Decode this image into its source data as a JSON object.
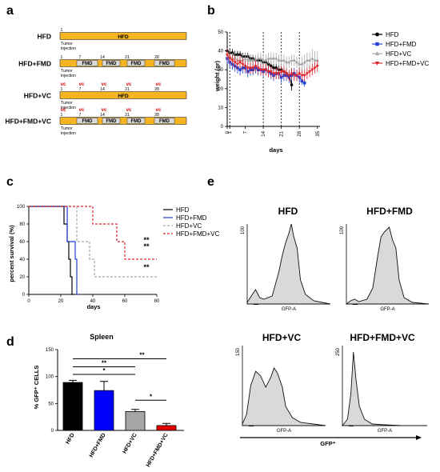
{
  "panels": {
    "a": "a",
    "b": "b",
    "c": "c",
    "d": "d",
    "e": "e"
  },
  "panel_a": {
    "rows": [
      {
        "label": "HFD",
        "bar_text": "HFD",
        "days": [
          "1"
        ],
        "tumor": [
          "Tumor",
          "injection"
        ],
        "fmd": [],
        "vc": []
      },
      {
        "label": "HFD+FMD",
        "bar_text": "",
        "days": [
          "1",
          "7",
          "14",
          "21",
          "28"
        ],
        "tumor": [
          "Tumor",
          "injection"
        ],
        "fmd": [
          "FMD",
          "FMD",
          "FMD",
          "FMD"
        ],
        "vc": []
      },
      {
        "label": "HFD+VC",
        "bar_text": "HFD",
        "days": [
          "1",
          "7",
          "14",
          "21",
          "28"
        ],
        "tumor": [
          "Tumor",
          "injection"
        ],
        "fmd": [],
        "vc": [
          "vc",
          "vc",
          "vc",
          "vc",
          "vc"
        ]
      },
      {
        "label": "HFD+FMD+VC",
        "bar_text": "",
        "days": [
          "1",
          "7",
          "14",
          "21",
          "28"
        ],
        "tumor": [
          "Tumor",
          "injection"
        ],
        "fmd": [
          "FMD",
          "FMD",
          "FMD",
          "FMD"
        ],
        "vc": [
          "vc",
          "vc",
          "vc",
          "vc",
          "vc"
        ]
      }
    ],
    "colors": {
      "bar": "#f5b521",
      "fmd_box": "#d9d9d9",
      "vc": "#d40000"
    }
  },
  "chart_data": [
    {
      "panel": "b",
      "type": "line",
      "ylabel": "weight (gr)",
      "xlabel": "days",
      "ylim": [
        0,
        50
      ],
      "yticks": [
        "0",
        "10",
        "20",
        "30",
        "40",
        "50"
      ],
      "xticks": [
        "0",
        "1",
        "7",
        "14",
        "21",
        "28",
        "35"
      ],
      "xlim": [
        0,
        36
      ],
      "vlines": [
        1,
        14,
        21,
        28
      ],
      "series": [
        {
          "name": "HFD",
          "color": "#000000",
          "marker": "circle",
          "x": [
            0,
            1,
            2,
            3,
            4,
            5,
            6,
            7,
            8,
            9,
            10,
            11,
            12,
            13,
            14,
            15,
            16,
            17,
            18,
            19,
            20,
            21,
            22,
            23,
            24,
            25
          ],
          "y": [
            40,
            39,
            39,
            38,
            38,
            38,
            37,
            37,
            37,
            36,
            36,
            35,
            35,
            35,
            34,
            34,
            33,
            32,
            31,
            31,
            30,
            30,
            29,
            28,
            27,
            22
          ],
          "err": [
            2,
            2,
            2,
            2,
            2,
            2,
            2,
            2,
            2,
            2,
            2,
            2,
            2,
            2,
            2,
            2,
            2,
            2,
            2,
            2,
            2,
            2,
            2,
            2,
            2,
            3
          ]
        },
        {
          "name": "HFD+FMD",
          "color": "#1f3fd6",
          "marker": "square",
          "x": [
            0,
            1,
            2,
            3,
            4,
            5,
            6,
            7,
            8,
            9,
            10,
            11,
            12,
            13,
            14,
            15,
            16,
            17,
            18,
            19,
            20,
            21,
            22,
            23,
            24,
            25,
            26,
            27,
            28,
            29,
            30
          ],
          "y": [
            36,
            34,
            33,
            32,
            31,
            30,
            31,
            31,
            29,
            30,
            30,
            31,
            30,
            30,
            29,
            30,
            29,
            28,
            27,
            28,
            28,
            26,
            27,
            27,
            26,
            27,
            28,
            27,
            26,
            24,
            23
          ],
          "err": [
            3,
            3,
            3,
            3,
            3,
            3,
            3,
            3,
            3,
            3,
            3,
            3,
            3,
            3,
            3,
            3,
            3,
            3,
            3,
            3,
            3,
            3,
            3,
            3,
            3,
            3,
            3,
            3,
            3,
            2,
            2
          ]
        },
        {
          "name": "HFD+VC",
          "color": "#a6a6a6",
          "marker": "triangle",
          "x": [
            0,
            1,
            2,
            3,
            4,
            5,
            6,
            7,
            8,
            9,
            10,
            11,
            12,
            13,
            14,
            15,
            16,
            17,
            18,
            19,
            20,
            21,
            22,
            23,
            24,
            25,
            26,
            27,
            28,
            29,
            30,
            31,
            32,
            33,
            34,
            35
          ],
          "y": [
            38,
            37,
            36,
            36,
            35,
            35,
            35,
            36,
            35,
            35,
            35,
            35,
            36,
            36,
            35,
            35,
            36,
            36,
            36,
            36,
            35,
            35,
            35,
            34,
            34,
            35,
            35,
            34,
            33,
            33,
            34,
            35,
            35,
            36,
            35,
            35
          ],
          "err": [
            3,
            3,
            3,
            3,
            3,
            3,
            3,
            3,
            3,
            3,
            3,
            3,
            3,
            3,
            3,
            3,
            3,
            3,
            3,
            3,
            3,
            3,
            3,
            3,
            3,
            3,
            3,
            3,
            3,
            4,
            4,
            4,
            4,
            5,
            5,
            5
          ]
        },
        {
          "name": "HFD+FMD+VC",
          "color": "#e0262b",
          "marker": "triangle-down",
          "x": [
            0,
            1,
            2,
            3,
            4,
            5,
            6,
            7,
            8,
            9,
            10,
            11,
            12,
            13,
            14,
            15,
            16,
            17,
            18,
            19,
            20,
            21,
            22,
            23,
            24,
            25,
            26,
            27,
            28,
            29,
            30,
            31,
            32,
            33,
            34,
            35
          ],
          "y": [
            38,
            36,
            35,
            34,
            33,
            34,
            33,
            32,
            31,
            31,
            31,
            32,
            31,
            30,
            30,
            30,
            29,
            29,
            28,
            28,
            28,
            29,
            29,
            28,
            27,
            28,
            27,
            27,
            28,
            27,
            27,
            28,
            29,
            30,
            31,
            32
          ],
          "err": [
            3,
            3,
            3,
            3,
            3,
            3,
            3,
            3,
            3,
            3,
            3,
            3,
            3,
            3,
            3,
            3,
            3,
            3,
            3,
            3,
            3,
            3,
            3,
            3,
            3,
            3,
            3,
            3,
            3,
            3,
            3,
            3,
            3,
            3,
            3,
            3
          ]
        }
      ]
    },
    {
      "panel": "c",
      "type": "line",
      "ylabel": "percent survival (%)",
      "xlabel": "days",
      "ylim": [
        0,
        100
      ],
      "xlim": [
        0,
        80
      ],
      "yticks": [
        "0",
        "20",
        "40",
        "60",
        "80",
        "100"
      ],
      "xticks": [
        "0",
        "20",
        "40",
        "60",
        "80"
      ],
      "annotations": [
        "**",
        "**",
        "**"
      ],
      "series": [
        {
          "name": "HFD",
          "color": "#000000",
          "dash": "solid",
          "steps": [
            [
              0,
              100
            ],
            [
              22,
              100
            ],
            [
              22,
              80
            ],
            [
              24,
              80
            ],
            [
              24,
              60
            ],
            [
              25,
              60
            ],
            [
              25,
              40
            ],
            [
              26,
              40
            ],
            [
              26,
              20
            ],
            [
              27,
              20
            ],
            [
              27,
              0
            ],
            [
              28,
              0
            ]
          ]
        },
        {
          "name": "HFD+FMD",
          "color": "#1f3fd6",
          "dash": "solid",
          "steps": [
            [
              0,
              100
            ],
            [
              24,
              100
            ],
            [
              24,
              60
            ],
            [
              29,
              60
            ],
            [
              29,
              40
            ],
            [
              30,
              40
            ],
            [
              30,
              0
            ],
            [
              31,
              0
            ]
          ]
        },
        {
          "name": "HFD+VC",
          "color": "#a6a6a6",
          "dash": "dashed",
          "steps": [
            [
              0,
              100
            ],
            [
              30,
              100
            ],
            [
              30,
              60
            ],
            [
              38,
              60
            ],
            [
              38,
              40
            ],
            [
              41,
              40
            ],
            [
              41,
              20
            ],
            [
              80,
              20
            ]
          ]
        },
        {
          "name": "HFD+FMD+VC",
          "color": "#e0262b",
          "dash": "dashed",
          "steps": [
            [
              0,
              100
            ],
            [
              40,
              100
            ],
            [
              40,
              80
            ],
            [
              55,
              80
            ],
            [
              55,
              60
            ],
            [
              60,
              60
            ],
            [
              60,
              40
            ],
            [
              80,
              40
            ]
          ]
        }
      ]
    },
    {
      "panel": "d",
      "type": "bar",
      "title": "Spleen",
      "ylabel": "% GFP⁺ CELLS",
      "ylim": [
        0,
        150
      ],
      "yticks": [
        "0",
        "50",
        "100",
        "150"
      ],
      "categories": [
        "HFD",
        "HFD+FMD",
        "HFD+VC",
        "HFD+FMD+VC"
      ],
      "values": [
        89,
        74,
        35,
        9
      ],
      "errors": [
        4,
        17,
        4,
        4
      ],
      "colors": [
        "#000000",
        "#0000ff",
        "#a6a6a6",
        "#e00000"
      ],
      "significance": [
        "**",
        "**",
        "*",
        "*"
      ]
    }
  ],
  "panel_e": {
    "plots": [
      {
        "title": "HFD",
        "ytick": "100",
        "xlabel": "GFP-A"
      },
      {
        "title": "HFD+FMD",
        "ytick": "100",
        "xlabel": "GFP-A"
      },
      {
        "title": "HFD+VC",
        "ytick": "150",
        "xlabel": "GFP-A"
      },
      {
        "title": "HFD+FMD+VC",
        "ytick": "250",
        "xlabel": "GFP-A"
      }
    ],
    "axis_label": "GFP⁺"
  }
}
